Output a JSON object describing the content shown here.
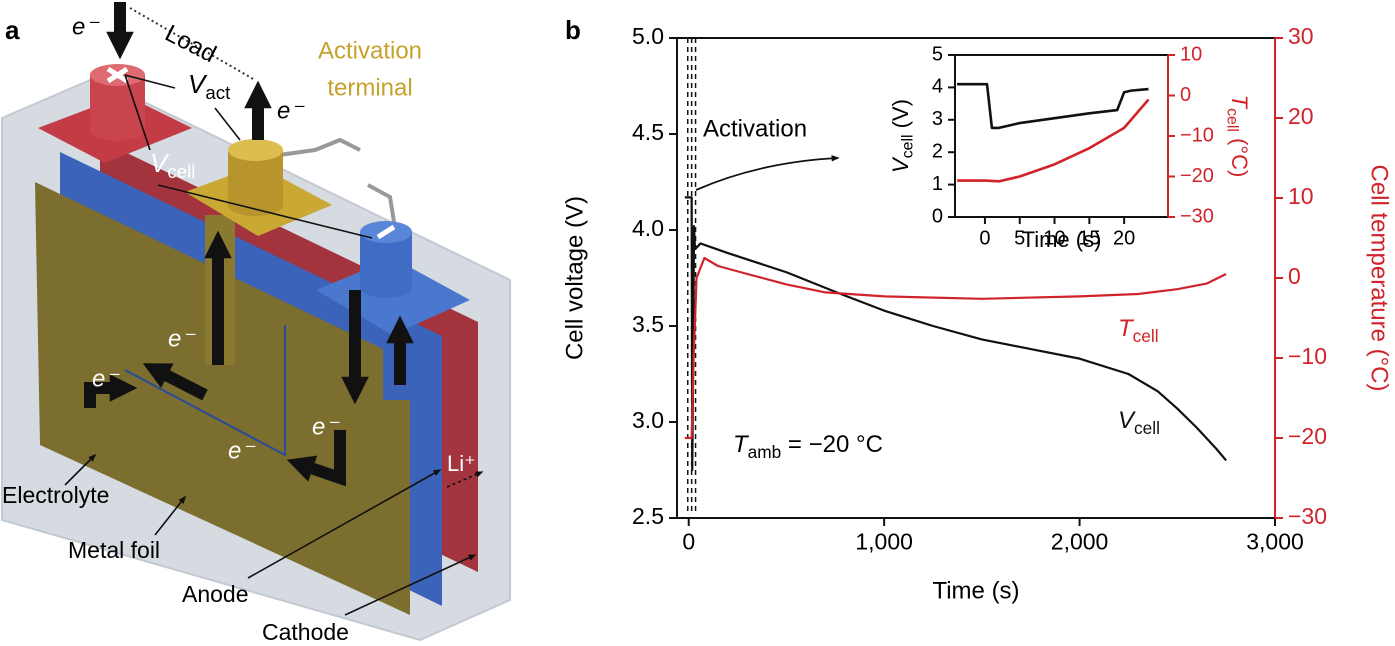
{
  "panel_labels": {
    "a": "a",
    "b": "b"
  },
  "diagram": {
    "electron": "e⁻",
    "load": "Load",
    "activation_terminal": [
      "Activation",
      "terminal"
    ],
    "v_act": {
      "main": "V",
      "sub": "act"
    },
    "v_cell": {
      "main": "V",
      "sub": "cell"
    },
    "electrolyte": "Electrolyte",
    "metal_foil": "Metal foil",
    "anode": "Anode",
    "cathode": "Cathode",
    "li_ion": "Li⁺"
  },
  "chart_data": [
    {
      "type": "line",
      "xlabel": "Time (s)",
      "ylabel": "Cell voltage (V)",
      "y2label": "Cell temperature (°C)",
      "xlim": [
        -60,
        3000
      ],
      "xticks": [
        0,
        {
          "value": 1000,
          "label": "1,000"
        },
        {
          "value": 2000,
          "label": "2,000"
        },
        {
          "value": 3000,
          "label": "3,000"
        }
      ],
      "ylim": [
        2.5,
        5.0
      ],
      "yticks": [
        2.5,
        {
          "value": 3,
          "label": "3.0"
        },
        3.5,
        {
          "value": 4,
          "label": "4.0"
        },
        4.5,
        {
          "value": 5,
          "label": "5.0"
        }
      ],
      "y2lim": [
        -30,
        30
      ],
      "y2ticks": [
        {
          "value": -30,
          "label": "−30"
        },
        {
          "value": -20,
          "label": "−20"
        },
        {
          "value": -10,
          "label": "−10"
        },
        0,
        10,
        20,
        30
      ],
      "y2color": "#d0232a",
      "series": [
        {
          "name": {
            "main": "V",
            "sub": "cell"
          },
          "color": "#111111",
          "x": [
            -20,
            15,
            18,
            22,
            27,
            32,
            60,
            200,
            500,
            770,
            1000,
            1250,
            1500,
            1750,
            2000,
            2250,
            2400,
            2500,
            2600,
            2700,
            2750
          ],
          "values": [
            4.17,
            4.17,
            2.75,
            3.2,
            4.02,
            3.9,
            3.93,
            3.88,
            3.78,
            3.67,
            3.58,
            3.5,
            3.43,
            3.38,
            3.33,
            3.25,
            3.16,
            3.07,
            2.97,
            2.86,
            2.8
          ]
        },
        {
          "name": {
            "main": "T",
            "sub": "cell"
          },
          "color": "#d0232a",
          "axis": "y2",
          "x": [
            -20,
            15,
            25,
            40,
            80,
            150,
            300,
            500,
            700,
            1000,
            1500,
            2000,
            2300,
            2500,
            2650,
            2750
          ],
          "values": [
            -20,
            -20,
            -10,
            0,
            2.5,
            1.5,
            0.5,
            -0.8,
            -1.8,
            -2.3,
            -2.6,
            -2.3,
            -2,
            -1.4,
            -0.7,
            0.5
          ]
        }
      ],
      "markers_x": [
        -5,
        15,
        35
      ],
      "annotations": {
        "activation": "Activation",
        "ambient": {
          "main": "T",
          "sub": "amb",
          "tail": " = −20 °C"
        }
      }
    },
    {
      "type": "line",
      "xlabel": "Time (s)",
      "ylabel": {
        "main": "V",
        "sub": "cell",
        "tail": " (V)"
      },
      "y2label": {
        "main": "T",
        "sub": "cell",
        "tail": " (°C)"
      },
      "xlim": [
        -4.3,
        26.3
      ],
      "xticks": [
        0,
        5,
        10,
        15,
        20
      ],
      "ylim": [
        0,
        5
      ],
      "yticks": [
        0,
        1,
        2,
        3,
        4,
        5
      ],
      "y2lim": [
        -30,
        10
      ],
      "y2ticks": [
        {
          "value": -30,
          "label": "−30"
        },
        {
          "value": -20,
          "label": "−20"
        },
        {
          "value": -10,
          "label": "−10"
        },
        0,
        10
      ],
      "y2color": "#d0232a",
      "series": [
        {
          "color": "#111111",
          "x": [
            -4,
            0.3,
            1,
            2,
            5,
            10,
            15,
            19,
            20,
            21,
            23.5
          ],
          "values": [
            4.1,
            4.1,
            2.75,
            2.75,
            2.9,
            3.05,
            3.2,
            3.3,
            3.85,
            3.9,
            3.95
          ]
        },
        {
          "color": "#d0232a",
          "axis": "y2",
          "x": [
            -4,
            0,
            2,
            5,
            10,
            15,
            20,
            23.5
          ],
          "values": [
            -21,
            -21,
            -21.2,
            -20,
            -17,
            -13,
            -8,
            -1
          ]
        }
      ]
    }
  ]
}
